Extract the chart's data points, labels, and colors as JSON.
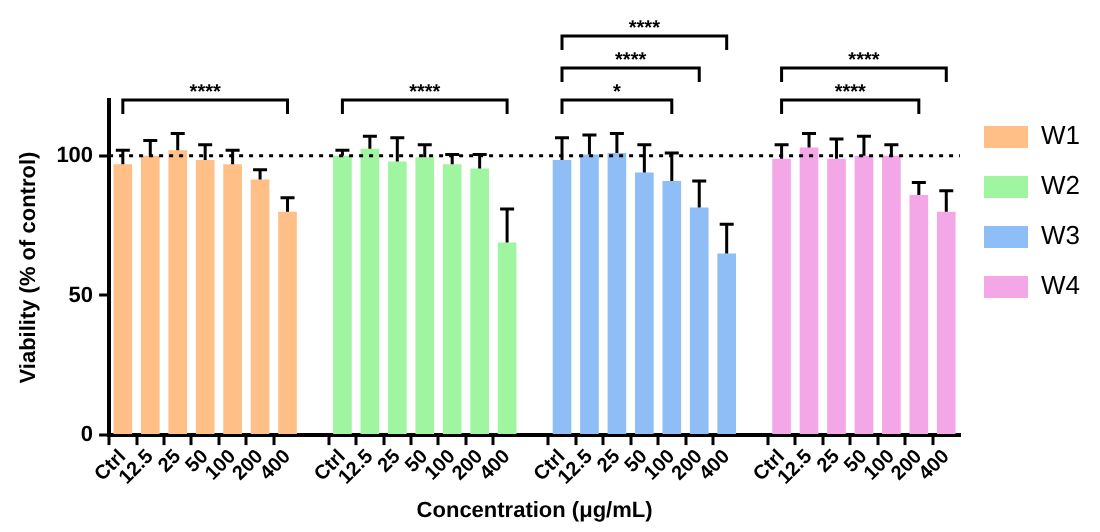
{
  "chart_data": {
    "type": "bar",
    "xlabel": "Concentration (μg/mL)",
    "ylabel": "Viability (% of control)",
    "categories": [
      "Ctrl",
      "12.5",
      "25",
      "50",
      "100",
      "200",
      "400",
      null,
      "Ctrl",
      "12.5",
      "25",
      "50",
      "100",
      "200",
      "400",
      null,
      "Ctrl",
      "12.5",
      "25",
      "50",
      "100",
      "200",
      "400",
      null,
      "Ctrl",
      "12.5",
      "25",
      "50",
      "100",
      "200",
      "400"
    ],
    "series": [
      {
        "name": "W1",
        "color": "#ffbf86",
        "values": [
          97,
          100,
          102,
          98.5,
          97,
          91.5,
          80,
          null,
          null,
          null,
          null,
          null,
          null,
          null,
          null,
          null,
          null,
          null,
          null,
          null,
          null,
          null,
          null,
          null,
          null,
          null,
          null,
          null,
          null,
          null,
          null
        ],
        "errors": [
          5,
          5.5,
          6,
          5.5,
          5,
          3.5,
          5,
          null,
          null,
          null,
          null,
          null,
          null,
          null,
          null,
          null,
          null,
          null,
          null,
          null,
          null,
          null,
          null,
          null,
          null,
          null,
          null,
          null,
          null,
          null,
          null
        ]
      },
      {
        "name": "W2",
        "color": "#a0f5a0",
        "values": [
          null,
          null,
          null,
          null,
          null,
          null,
          null,
          null,
          100,
          102.5,
          98,
          99.5,
          97,
          95.5,
          69,
          null,
          null,
          null,
          null,
          null,
          null,
          null,
          null,
          null,
          null,
          null,
          null,
          null,
          null,
          null,
          null
        ],
        "errors": [
          null,
          null,
          null,
          null,
          null,
          null,
          null,
          null,
          2,
          4.5,
          8.5,
          4.5,
          3.5,
          5,
          12,
          null,
          null,
          null,
          null,
          null,
          null,
          null,
          null,
          null,
          null,
          null,
          null,
          null,
          null,
          null,
          null
        ]
      },
      {
        "name": "W3",
        "color": "#8fbdf5",
        "values": [
          null,
          null,
          null,
          null,
          null,
          null,
          null,
          null,
          null,
          null,
          null,
          null,
          null,
          null,
          null,
          null,
          98.5,
          100.5,
          101,
          94,
          91,
          81.5,
          65,
          null,
          null,
          null,
          null,
          null,
          null,
          null,
          null
        ],
        "errors": [
          null,
          null,
          null,
          null,
          null,
          null,
          null,
          null,
          null,
          null,
          null,
          null,
          null,
          null,
          null,
          null,
          8,
          7,
          7,
          10,
          10,
          9.5,
          10.5,
          null,
          null,
          null,
          null,
          null,
          null,
          null,
          null
        ]
      },
      {
        "name": "W4",
        "color": "#f4a7e6",
        "values": [
          null,
          null,
          null,
          null,
          null,
          null,
          null,
          null,
          null,
          null,
          null,
          null,
          null,
          null,
          null,
          null,
          null,
          null,
          null,
          null,
          null,
          null,
          null,
          null,
          99,
          103,
          99,
          100,
          100,
          86,
          80
        ],
        "errors": [
          null,
          null,
          null,
          null,
          null,
          null,
          null,
          null,
          null,
          null,
          null,
          null,
          null,
          null,
          null,
          null,
          null,
          null,
          null,
          null,
          null,
          null,
          null,
          null,
          5,
          5,
          7,
          7,
          4,
          4.5,
          7.5
        ]
      }
    ],
    "ylim": [
      0,
      120
    ],
    "yticks": [
      0,
      50,
      100
    ],
    "grid": false,
    "legend": "top right",
    "ref_lines": [
      {
        "axis": "y",
        "value": 100,
        "line_style": "dotted"
      }
    ],
    "annotations": [
      "****",
      "****",
      "*",
      "****",
      "****",
      "****",
      "****"
    ]
  }
}
